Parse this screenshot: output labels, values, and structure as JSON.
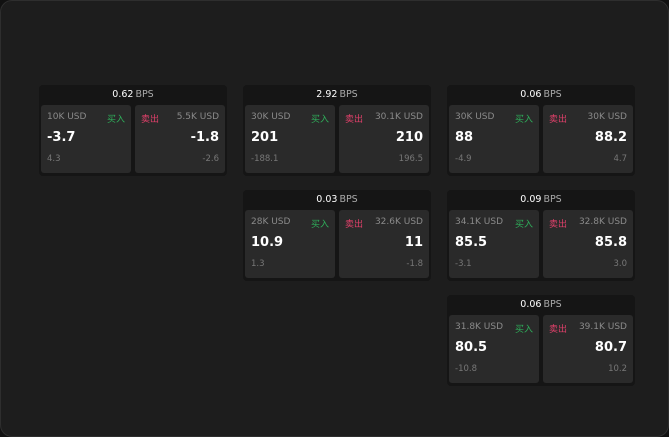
{
  "unit": "BPS",
  "buy_label": "买入",
  "sell_label": "卖出",
  "colors": {
    "buy": "#2fae5a",
    "sell": "#e0406a"
  },
  "cards": [
    {
      "bps": "0.62",
      "bid_size": "10K USD",
      "bid": "-3.7",
      "bid_sub": "4.3",
      "ask_size": "5.5K USD",
      "ask": "-1.8",
      "ask_sub": "-2.6"
    },
    {
      "bps": "2.92",
      "bid_size": "30K USD",
      "bid": "201",
      "bid_sub": "-188.1",
      "ask_size": "30.1K USD",
      "ask": "210",
      "ask_sub": "196.5"
    },
    {
      "bps": "0.06",
      "bid_size": "30K USD",
      "bid": "88",
      "bid_sub": "-4.9",
      "ask_size": "30K USD",
      "ask": "88.2",
      "ask_sub": "4.7"
    },
    {
      "bps": "0.03",
      "bid_size": "28K USD",
      "bid": "10.9",
      "bid_sub": "1.3",
      "ask_size": "32.6K USD",
      "ask": "11",
      "ask_sub": "-1.8"
    },
    {
      "bps": "0.09",
      "bid_size": "34.1K USD",
      "bid": "85.5",
      "bid_sub": "-3.1",
      "ask_size": "32.8K USD",
      "ask": "85.8",
      "ask_sub": "3.0"
    },
    {
      "bps": "0.06",
      "bid_size": "31.8K USD",
      "bid": "80.5",
      "bid_sub": "-10.8",
      "ask_size": "39.1K USD",
      "ask": "80.7",
      "ask_sub": "10.2"
    }
  ]
}
